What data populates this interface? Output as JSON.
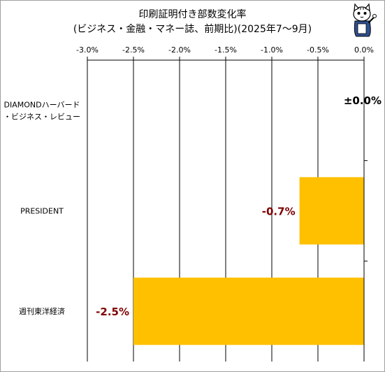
{
  "chart_data": {
    "type": "bar",
    "orientation": "horizontal",
    "title": "印刷証明付き部数変化率",
    "subtitle": "(ビジネス・金融・マネー誌、前期比)(2025年7～9月)",
    "categories": [
      "DIAMONDハーバード・ビジネス・レビュー",
      "PRESIDENT",
      "週刊東洋経済"
    ],
    "category_lines": [
      [
        "DIAMONDハーバード",
        "・ビジネス・レビュー"
      ],
      [
        "PRESIDENT"
      ],
      [
        "週刊東洋経済"
      ]
    ],
    "values": [
      0.0,
      -0.7,
      -2.5
    ],
    "data_labels": [
      "±0.0%",
      "-0.7%",
      "-2.5%"
    ],
    "xlim": [
      -3.0,
      0.0
    ],
    "xticks": [
      -3.0,
      -2.5,
      -2.0,
      -1.5,
      -1.0,
      -0.5,
      0.0
    ],
    "xtick_labels": [
      "-3.0%",
      "-2.5%",
      "-2.0%",
      "-1.5%",
      "-1.0%",
      "-0.5%",
      "0.0%"
    ],
    "xaxis_position": "top",
    "grid": true,
    "legend": "none",
    "colors": {
      "bar": "#ffc000",
      "negative_label": "#7f0000",
      "zero_label": "#000000",
      "grid": "#000000"
    }
  },
  "mascot": {
    "icon": "cat-mascot-icon"
  }
}
